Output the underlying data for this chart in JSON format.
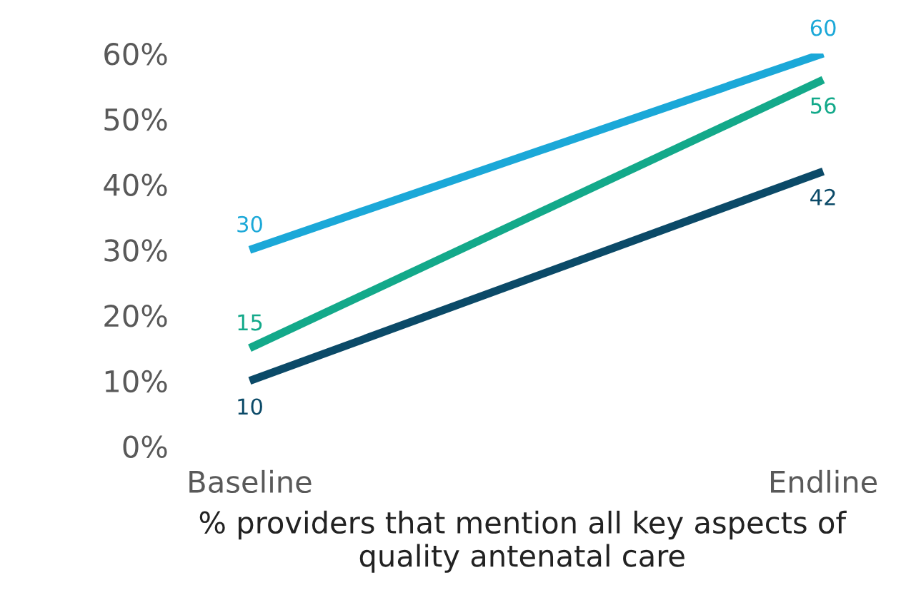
{
  "chart_data": {
    "type": "line",
    "categories": [
      "Baseline",
      "Endline"
    ],
    "series": [
      {
        "color": "#1ba8d8",
        "values": [
          30,
          60
        ]
      },
      {
        "color": "#13a98a",
        "values": [
          15,
          56
        ]
      },
      {
        "color": "#0b4a68",
        "values": [
          10,
          42
        ]
      }
    ],
    "ylim": [
      0,
      60
    ],
    "yticks": [
      {
        "value": 0,
        "label": "0%"
      },
      {
        "value": 10,
        "label": "10%"
      },
      {
        "value": 20,
        "label": "20%"
      },
      {
        "value": 30,
        "label": "30%"
      },
      {
        "value": 40,
        "label": "40%"
      },
      {
        "value": 50,
        "label": "50%"
      },
      {
        "value": 60,
        "label": "60%"
      }
    ],
    "xlabel": "% providers that mention all key aspects of\nquality antenatal care",
    "data_labels": true,
    "grid": false,
    "legend": false,
    "marker": "none",
    "line_style": "solid"
  }
}
